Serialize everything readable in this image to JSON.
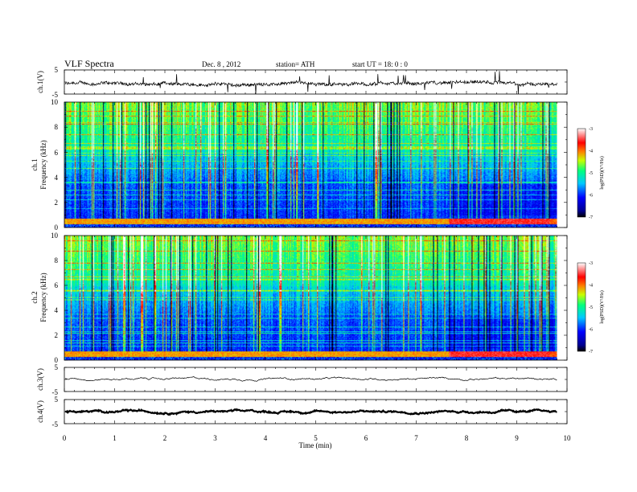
{
  "header": {
    "title": "VLF  Spectra",
    "date": "Dec. 8  , 2012",
    "station": "station= ATH",
    "start": "start  UT =   18: 0  : 0"
  },
  "chart_data": [
    {
      "type": "line",
      "name": "ch1-waveform",
      "ylabel": "ch.1(V)",
      "ylim": [
        -5,
        5
      ],
      "yticks": [
        5,
        -5
      ],
      "xlim": [
        0,
        10
      ],
      "trace": {
        "x_end": 9.8,
        "baseline": -0.8,
        "noise_amplitude": 1.2,
        "spike_count": 60
      }
    },
    {
      "type": "heatmap",
      "name": "ch1-spectrogram",
      "ylabel_line1": "ch.1",
      "ylabel_line2": "Frequency (kHz)",
      "ylim": [
        0,
        10
      ],
      "yticks": [
        0,
        2,
        4,
        6,
        8,
        10
      ],
      "xlim": [
        0,
        10
      ],
      "x_data_end": 9.8,
      "colorbar": {
        "label": "log(PSD)(V²/Hz)",
        "range": [
          -7,
          -3
        ],
        "ticks": [
          "-3",
          "-4",
          "-5",
          "-6",
          "-7"
        ]
      }
    },
    {
      "type": "heatmap",
      "name": "ch2-spectrogram",
      "ylabel_line1": "ch.2",
      "ylabel_line2": "Frequency (kHz)",
      "ylim": [
        0,
        10
      ],
      "yticks": [
        0,
        2,
        4,
        6,
        8,
        10
      ],
      "xlim": [
        0,
        10
      ],
      "x_data_end": 9.8,
      "colorbar": {
        "label": "log(PSD)(V²/Hz)",
        "range": [
          -7,
          -3
        ],
        "ticks": [
          "-3",
          "-4",
          "-5",
          "-6",
          "-7"
        ]
      }
    },
    {
      "type": "line",
      "name": "ch3-waveform",
      "ylabel": "ch.3(V)",
      "ylim": [
        -5,
        5
      ],
      "yticks": [
        5,
        -5
      ],
      "xlim": [
        0,
        10
      ],
      "trace": {
        "x_end": 9.8,
        "baseline": 0.3,
        "noise_amplitude": 0.05
      }
    },
    {
      "type": "line",
      "name": "ch4-waveform",
      "ylabel": "ch.4(V)",
      "ylim": [
        -5,
        5
      ],
      "yticks": [
        5,
        -5
      ],
      "xlim": [
        0,
        10
      ],
      "trace": {
        "x_end": 9.8,
        "baseline": 0.0,
        "noise_amplitude": 0.3
      }
    }
  ],
  "x_axis": {
    "label": "Time  (min)",
    "ticks": [
      "0",
      "1",
      "2",
      "3",
      "4",
      "5",
      "6",
      "7",
      "8",
      "9",
      "10"
    ]
  }
}
